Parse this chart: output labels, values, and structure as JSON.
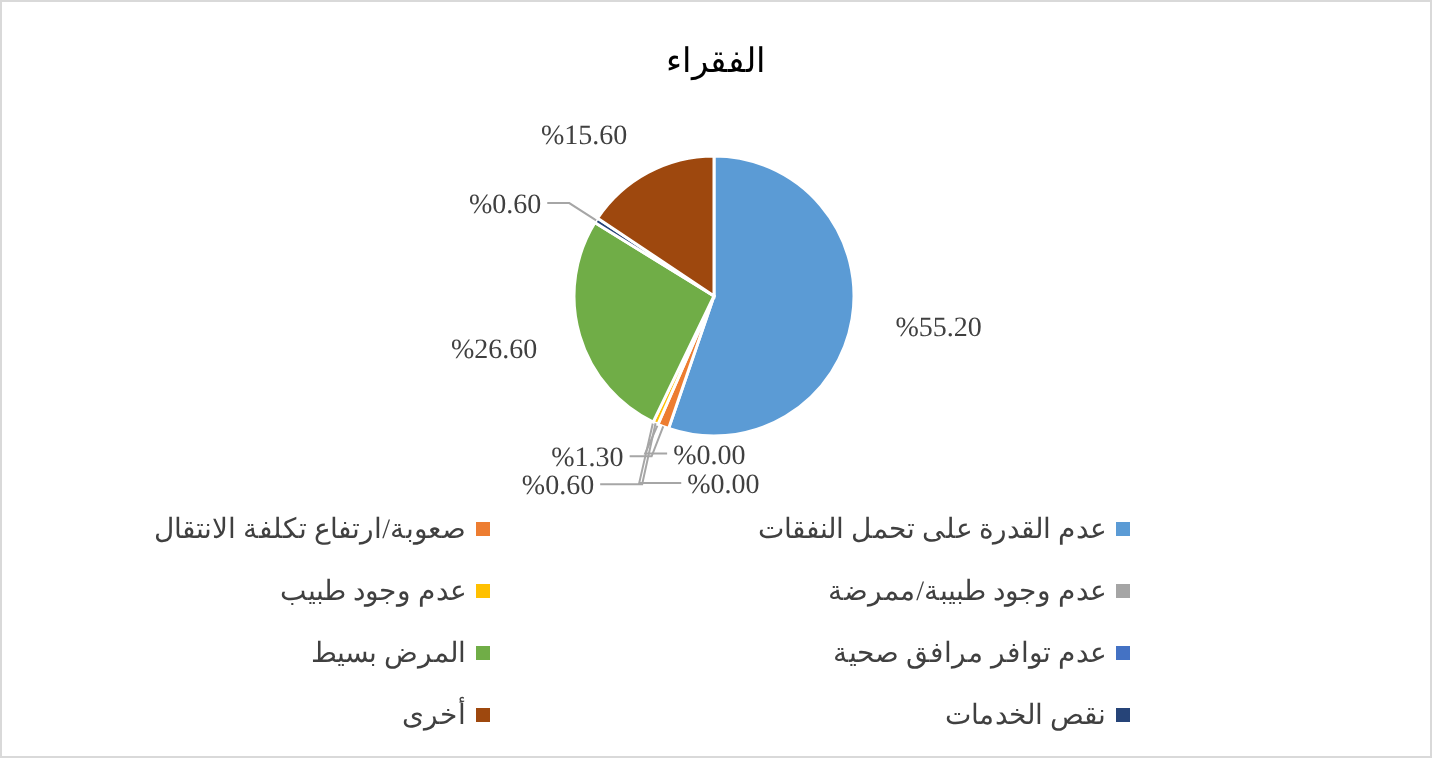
{
  "chart_data": {
    "type": "pie",
    "title": "الفقراء",
    "categories": [
      "عدم القدرة على تحمل النفقات",
      "صعوبة/ارتفاع تكلفة الانتقال",
      "عدم وجود طبيبة/ممرضة",
      "عدم وجود طبيب",
      "عدم توافر مرافق صحية",
      "المرض بسيط",
      "نقص الخدمات",
      "أخرى"
    ],
    "values": [
      55.2,
      1.3,
      0.0,
      0.6,
      0.0,
      26.6,
      0.6,
      15.6
    ],
    "colors": [
      "#5b9bd5",
      "#ed7d31",
      "#a5a5a5",
      "#ffc000",
      "#4472c4",
      "#70ad47",
      "#264478",
      "#9e480e"
    ],
    "value_labels": [
      "%55.20",
      "%1.30",
      "%0.00",
      "%0.60",
      "%0.00",
      "%26.60",
      "%0.60",
      "%15.60"
    ],
    "legend": "bottom"
  }
}
